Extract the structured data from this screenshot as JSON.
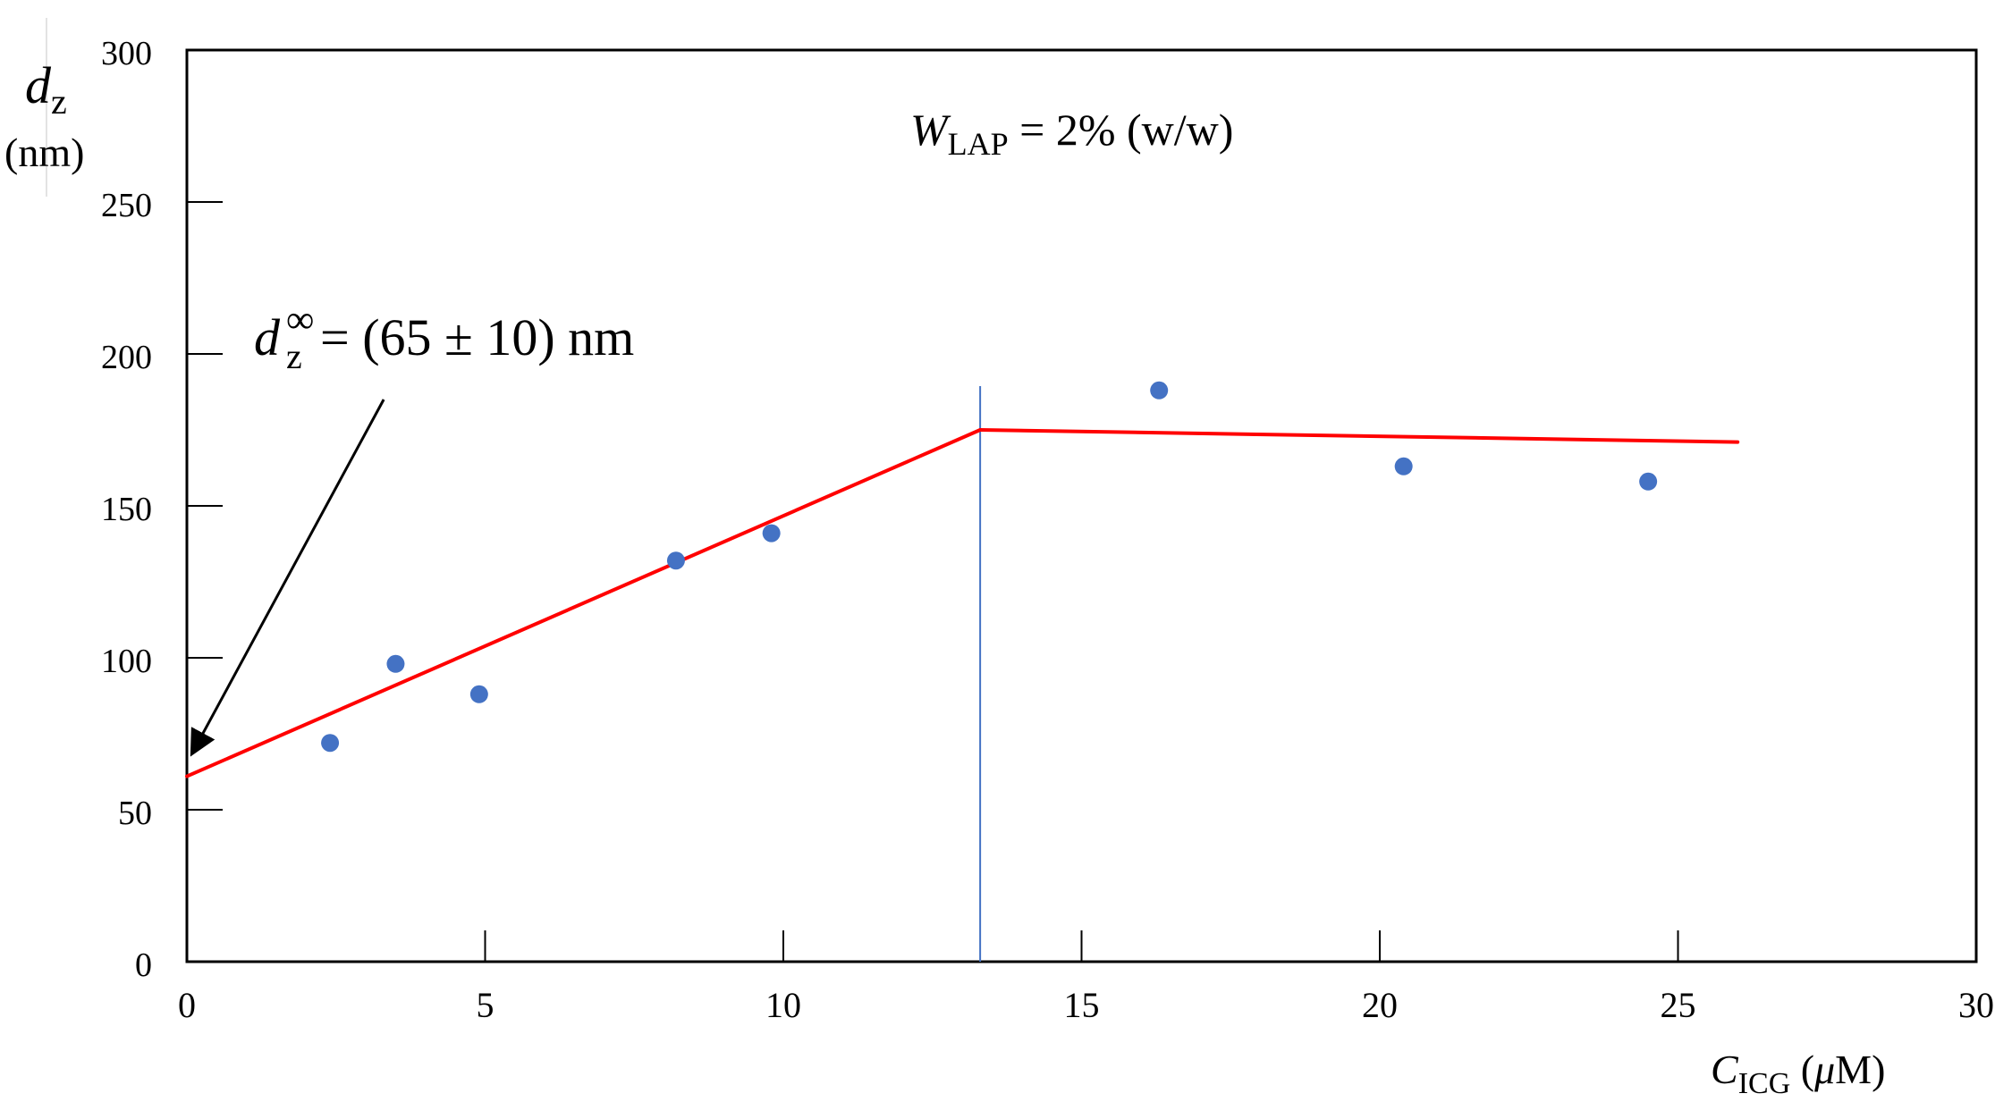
{
  "chart_data": {
    "type": "scatter",
    "xlim": [
      0,
      30
    ],
    "ylim": [
      0,
      300
    ],
    "x_ticks": [
      "0",
      "5",
      "10",
      "15",
      "20",
      "25",
      "30"
    ],
    "y_ticks": [
      "0",
      "50",
      "100",
      "150",
      "200",
      "250",
      "300"
    ],
    "ylabel": {
      "main": "d",
      "sub": "z",
      "unit": "(nm)"
    },
    "xlabel": {
      "main": "C",
      "sub": "ICG",
      "unit_open": " (",
      "mu": "μ",
      "unit_rest": "M)"
    },
    "condition": {
      "main": "W",
      "sub": "LAP",
      "rest": " = 2% (w/w)"
    },
    "annotation": {
      "main": "d",
      "sup": "∞",
      "sub": "z",
      "rest": "= (65 ± 10) nm"
    },
    "points": [
      {
        "x": 2.4,
        "y": 72
      },
      {
        "x": 3.5,
        "y": 98
      },
      {
        "x": 4.9,
        "y": 88
      },
      {
        "x": 8.2,
        "y": 132
      },
      {
        "x": 9.8,
        "y": 141
      },
      {
        "x": 16.3,
        "y": 188
      },
      {
        "x": 20.4,
        "y": 163
      },
      {
        "x": 24.5,
        "y": 158
      }
    ],
    "fit_lines": [
      {
        "x": [
          0,
          13.3
        ],
        "y": [
          61,
          175
        ]
      },
      {
        "x": [
          13.3,
          26.0
        ],
        "y": [
          175,
          171
        ]
      }
    ],
    "vertical_marker_x": 13.3,
    "annotation_arrow": {
      "from": [
        3.3,
        185
      ],
      "to": [
        0.1,
        69
      ]
    },
    "colors": {
      "points": "#4472c4",
      "fit_line": "#ff0000",
      "vertical_line": "#4472c4",
      "axes": "#000000"
    },
    "grid": false
  }
}
